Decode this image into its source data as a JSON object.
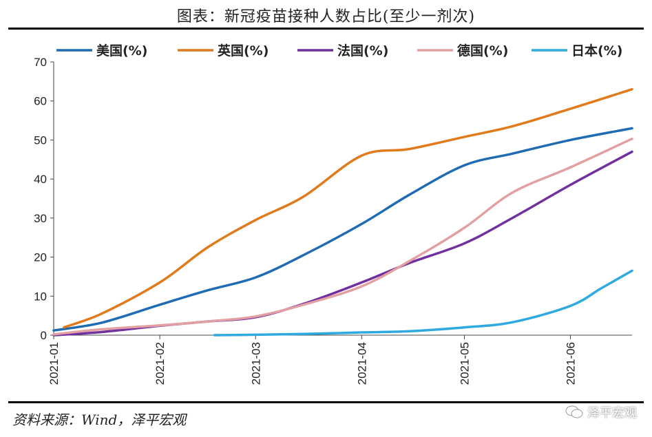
{
  "page": {
    "title": "图表：新冠疫苗接种人数占比(至少一剂次)",
    "source": "资料来源：Wind，泽平宏观",
    "watermark": "泽平宏观"
  },
  "chart_data": {
    "type": "line",
    "title": "图表：新冠疫苗接种人数占比(至少一剂次)",
    "xlabel": "",
    "ylabel": "",
    "ylim": [
      0,
      70
    ],
    "yticks": [
      0,
      10,
      20,
      30,
      40,
      50,
      60,
      70
    ],
    "xlim": [
      "2021-01-01",
      "2021-06-19"
    ],
    "xtick_labels": [
      "2021-01",
      "2021-02",
      "2021-03",
      "2021-04",
      "2021-05",
      "2021-06"
    ],
    "xtick_dates": [
      "2021-01-01",
      "2021-02-01",
      "2021-03-01",
      "2021-04-01",
      "2021-05-01",
      "2021-06-01"
    ],
    "grid": false,
    "legend_position": "top",
    "series": [
      {
        "name": "美国(%)",
        "color": "#1f6bb4",
        "x": [
          "2021-01-01",
          "2021-01-15",
          "2021-02-01",
          "2021-02-15",
          "2021-03-01",
          "2021-03-15",
          "2021-04-01",
          "2021-04-15",
          "2021-05-01",
          "2021-05-15",
          "2021-06-01",
          "2021-06-19"
        ],
        "values": [
          1.2,
          3.2,
          7.8,
          11.5,
          14.8,
          20.5,
          28.5,
          36.0,
          43.5,
          46.5,
          50.0,
          53.0
        ]
      },
      {
        "name": "英国(%)",
        "color": "#e07a1a",
        "x": [
          "2021-01-04",
          "2021-01-15",
          "2021-02-01",
          "2021-02-15",
          "2021-03-01",
          "2021-03-15",
          "2021-04-01",
          "2021-04-15",
          "2021-05-01",
          "2021-05-15",
          "2021-06-01",
          "2021-06-19"
        ],
        "values": [
          2.0,
          5.5,
          13.5,
          22.5,
          29.5,
          35.5,
          46.0,
          47.7,
          50.8,
          53.5,
          58.0,
          63.0
        ]
      },
      {
        "name": "法国(%)",
        "color": "#7030a0",
        "x": [
          "2021-01-01",
          "2021-01-15",
          "2021-02-01",
          "2021-02-15",
          "2021-03-01",
          "2021-03-15",
          "2021-04-01",
          "2021-04-15",
          "2021-05-01",
          "2021-05-15",
          "2021-06-01",
          "2021-06-19"
        ],
        "values": [
          0.0,
          0.8,
          2.4,
          3.5,
          4.6,
          8.0,
          13.5,
          18.5,
          23.5,
          30.0,
          38.5,
          47.0
        ]
      },
      {
        "name": "德国(%)",
        "color": "#e3a0a2",
        "x": [
          "2021-01-01",
          "2021-01-15",
          "2021-02-01",
          "2021-02-15",
          "2021-03-01",
          "2021-03-15",
          "2021-04-01",
          "2021-04-15",
          "2021-05-01",
          "2021-05-15",
          "2021-06-01",
          "2021-06-19"
        ],
        "values": [
          0.2,
          1.5,
          2.5,
          3.5,
          4.8,
          7.8,
          12.5,
          19.0,
          27.5,
          36.5,
          43.0,
          50.3
        ]
      },
      {
        "name": "日本(%)",
        "color": "#2eaae1",
        "x": [
          "2021-02-17",
          "2021-03-01",
          "2021-03-15",
          "2021-04-01",
          "2021-04-15",
          "2021-05-01",
          "2021-05-15",
          "2021-06-01",
          "2021-06-10",
          "2021-06-19"
        ],
        "values": [
          0.0,
          0.1,
          0.3,
          0.7,
          1.0,
          2.0,
          3.3,
          7.5,
          12.0,
          16.5
        ]
      }
    ]
  }
}
